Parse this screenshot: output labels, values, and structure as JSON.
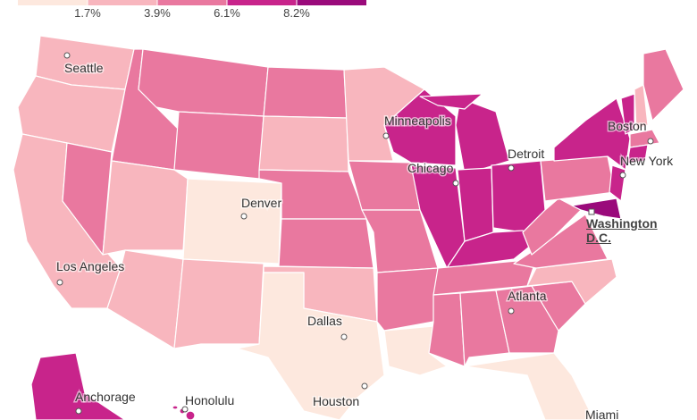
{
  "legend": {
    "colors": [
      "#fde8de",
      "#f8b6be",
      "#e9789f",
      "#c8248b",
      "#9a0a7b"
    ],
    "ticks": [
      {
        "value": 1.7,
        "label": "1.7%"
      },
      {
        "value": 3.9,
        "label": "3.9%"
      },
      {
        "value": 6.1,
        "label": "6.1%"
      },
      {
        "value": 8.2,
        "label": "8.2%"
      }
    ]
  },
  "cities": [
    "Seattle",
    "Minneapolis",
    "Boston",
    "Detroit",
    "Chicago",
    "New York",
    "Denver",
    "Washington D.C.",
    "Los Angeles",
    "Atlanta",
    "Dallas",
    "Anchorage",
    "Honolulu",
    "Houston",
    "Miami"
  ]
}
